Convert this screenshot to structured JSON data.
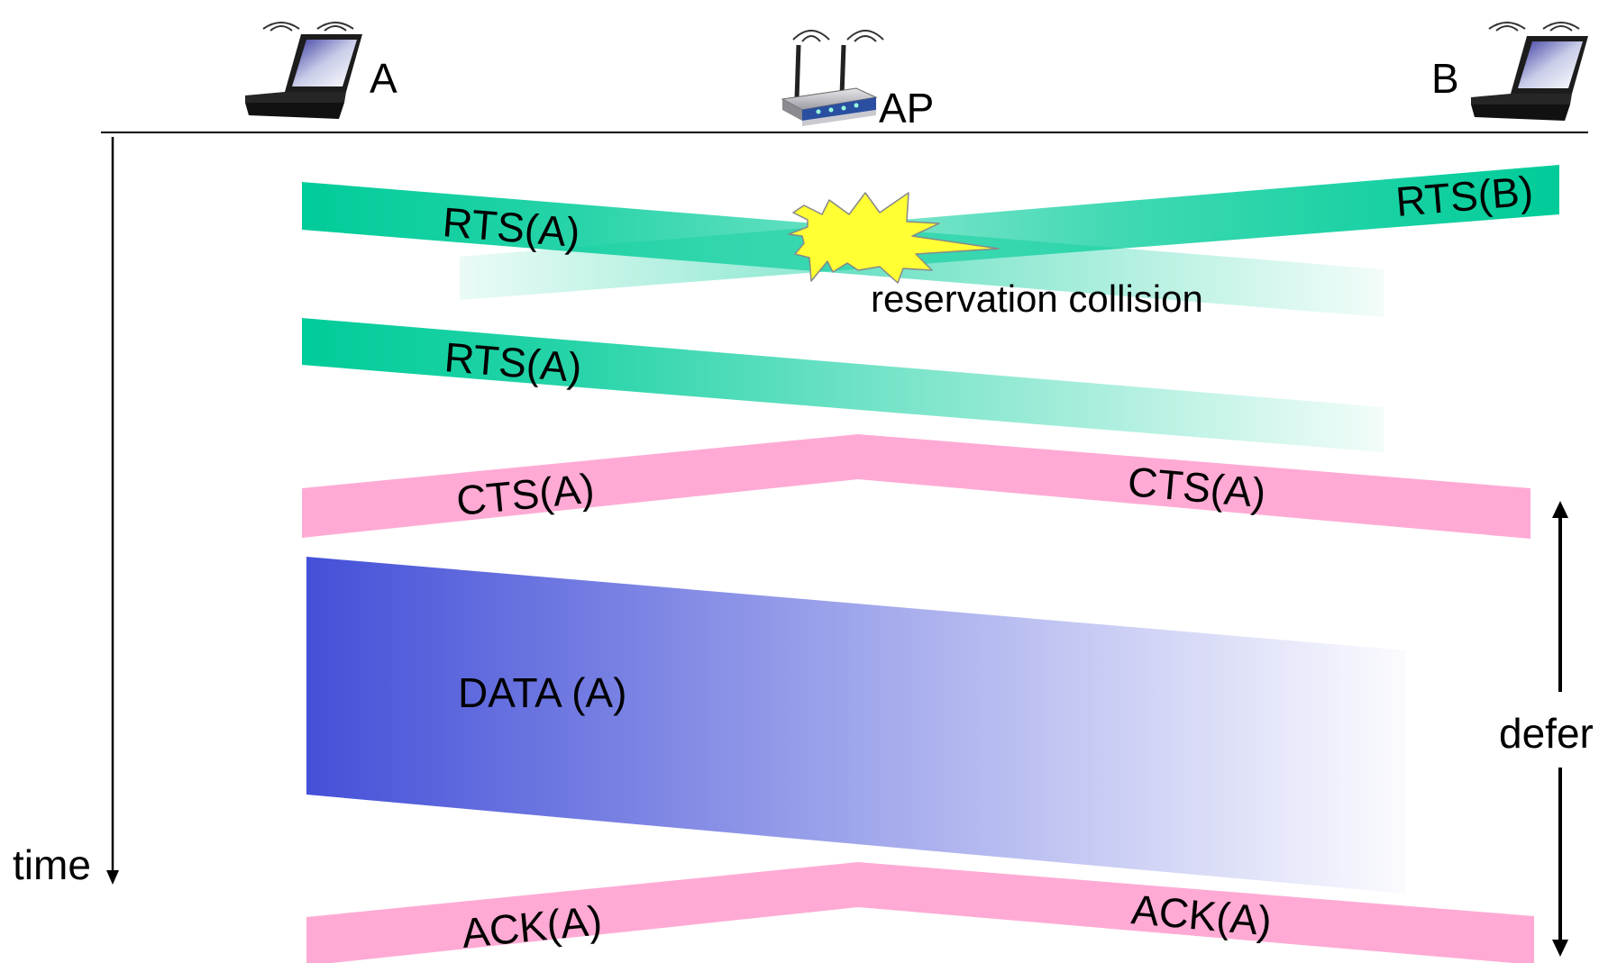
{
  "nodes": {
    "a": {
      "label": "A",
      "icon": "laptop-icon"
    },
    "ap": {
      "label": "AP",
      "icon": "wireless-router-icon"
    },
    "b": {
      "label": "B",
      "icon": "laptop-icon"
    }
  },
  "axis": {
    "label": "time"
  },
  "messages": {
    "rts_a_first": "RTS(A)",
    "rts_b": "RTS(B)",
    "collision": "reservation collision",
    "rts_a_second": "RTS(A)",
    "cts_a_left": "CTS(A)",
    "cts_a_right": "CTS(A)",
    "data_a": "DATA (A)",
    "ack_a_left": "ACK(A)",
    "ack_a_right": "ACK(A)"
  },
  "defer": {
    "label": "defer"
  },
  "colors": {
    "rts": "#00cc99",
    "cts_ack": "#ffaad4",
    "data": "#4450d8",
    "burst": "#ffff33"
  }
}
